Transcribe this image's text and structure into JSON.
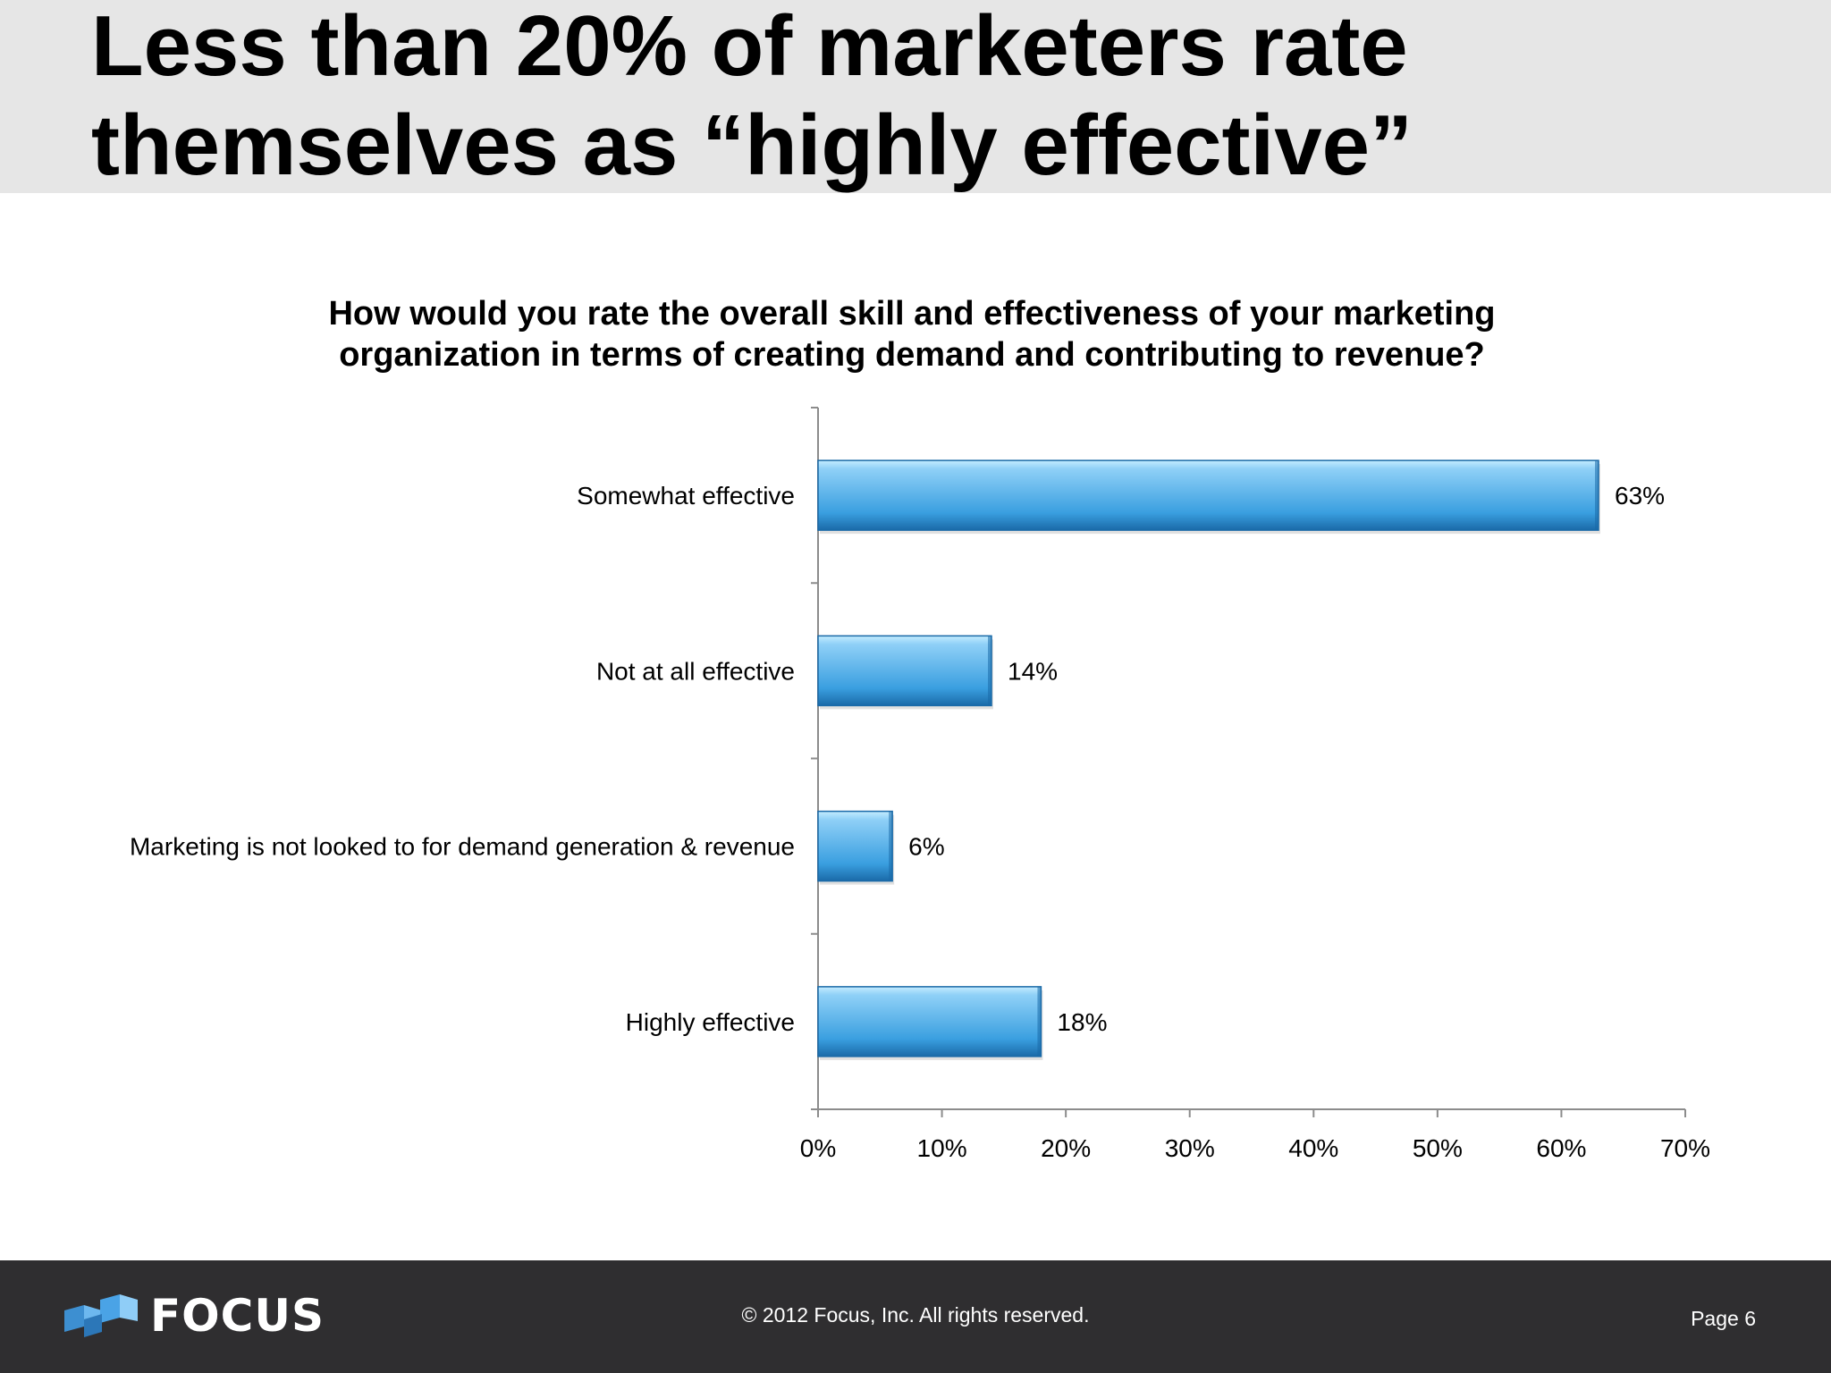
{
  "slide": {
    "title_line1": "Less than 20% of marketers rate",
    "title_line2": "themselves as “highly effective”",
    "background": "#ffffff",
    "header_color": "#e6e6e6"
  },
  "chart_data": {
    "type": "bar",
    "orientation": "horizontal",
    "title_line1": "How would you rate the overall skill and effectiveness of your marketing",
    "title_line2": "organization in terms of creating demand and contributing to revenue?",
    "categories": [
      "Somewhat effective",
      "Not at all effective",
      "Marketing is not looked to for demand generation & revenue",
      "Highly effective"
    ],
    "values": [
      63,
      14,
      6,
      18
    ],
    "data_labels": [
      "63%",
      "14%",
      "6%",
      "18%"
    ],
    "x_ticks": [
      "0%",
      "10%",
      "20%",
      "30%",
      "40%",
      "50%",
      "60%",
      "70%"
    ],
    "xlim": [
      0,
      70
    ],
    "xlabel": "",
    "ylabel": "",
    "grid": false,
    "legend": "none",
    "bar_color": "#3a9fe0",
    "bar_highlight": "#c4ecff",
    "bar_edge": "#1a6aa8"
  },
  "footer": {
    "logo_text": "FOCUS",
    "copyright": "© 2012 Focus, Inc. All rights reserved.",
    "page": "Page 6",
    "background": "#2f2e30"
  }
}
